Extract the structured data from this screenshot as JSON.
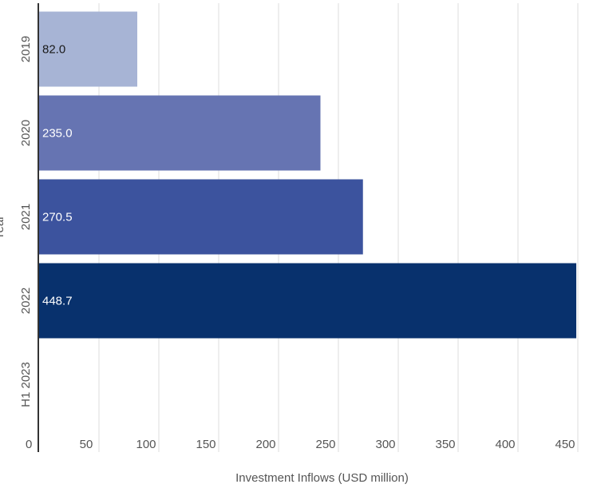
{
  "chart_data": {
    "type": "bar",
    "orientation": "horizontal",
    "categories": [
      "2019",
      "2020",
      "2021",
      "2022",
      "H1 2023"
    ],
    "values": [
      82.0,
      235.0,
      270.5,
      448.7,
      null
    ],
    "data_labels": [
      "82.0",
      "235.0",
      "270.5",
      "448.7",
      ""
    ],
    "bar_colors": [
      "#a7b4d5",
      "#6674b2",
      "#3c539e",
      "#08316d",
      "#08316d"
    ],
    "label_colors": [
      "#1a1a1a",
      "#ffffff",
      "#ffffff",
      "#ffffff",
      "#ffffff"
    ],
    "xlabel": "Investment Inflows (USD million)",
    "ylabel": "Year",
    "xlim": [
      0,
      450
    ],
    "xticks": [
      0,
      50,
      100,
      150,
      200,
      250,
      300,
      350,
      400,
      450
    ],
    "grid": true,
    "legend": "none",
    "title": ""
  }
}
